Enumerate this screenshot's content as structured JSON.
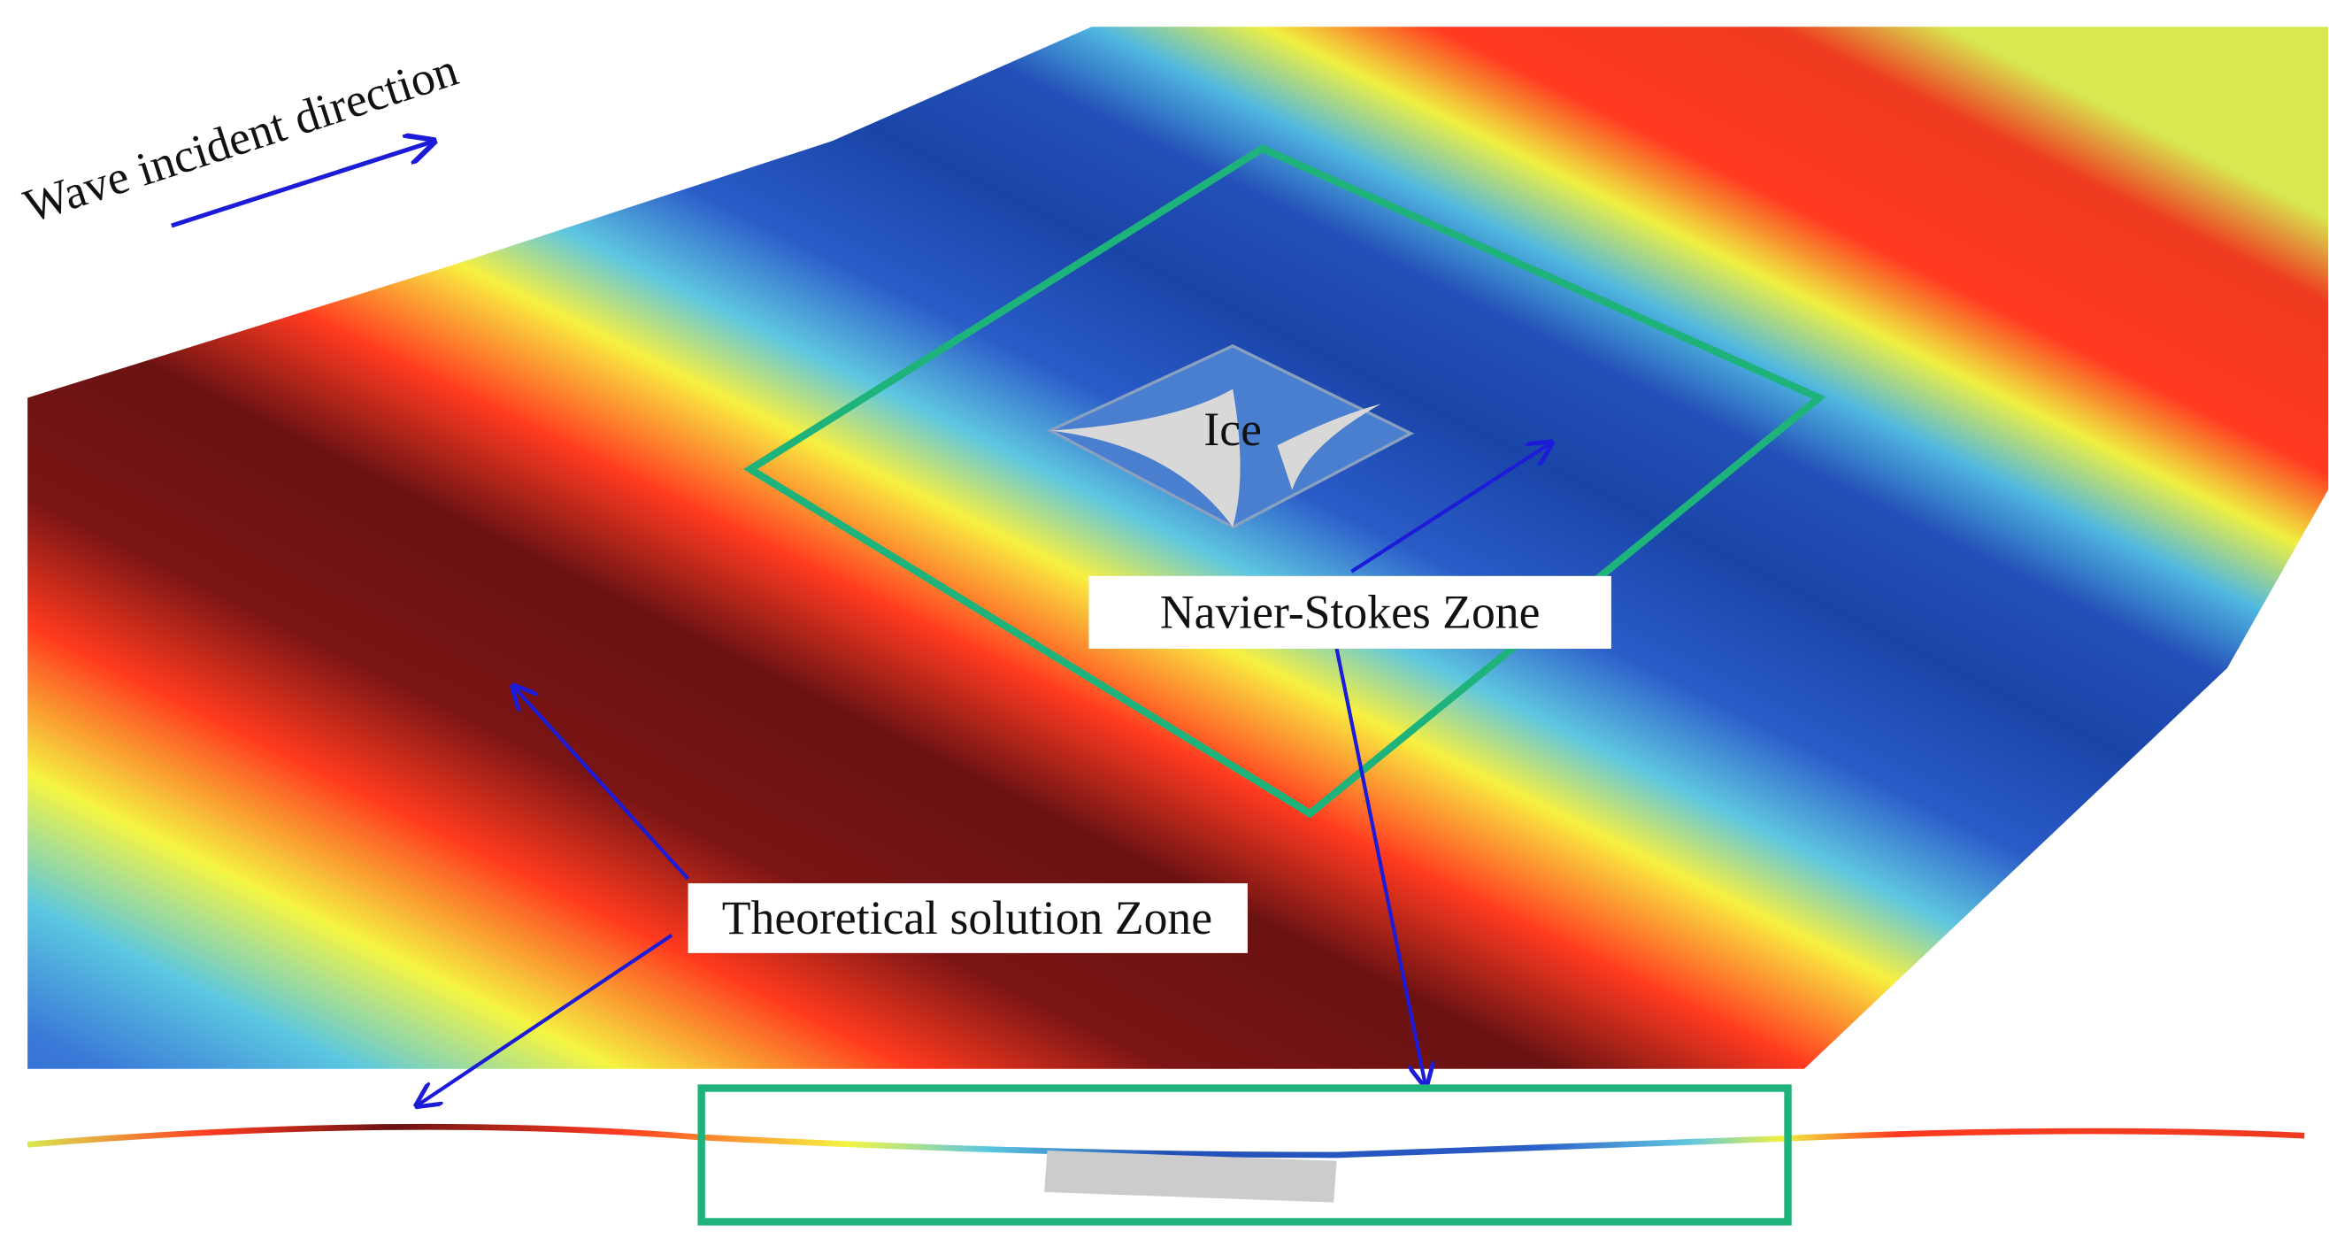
{
  "labels": {
    "wave_direction": "Wave incident direction",
    "ice": "Ice",
    "ns_zone": "Navier-Stokes Zone",
    "theory_zone": "Theoretical solution Zone"
  }
}
